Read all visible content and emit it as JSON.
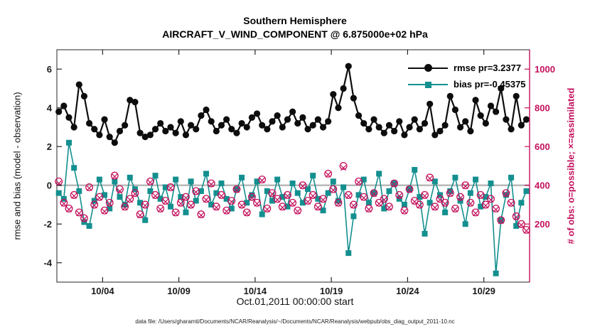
{
  "figure": {
    "title_line1": "Southern Hemisphere",
    "title_line2": "AIRCRAFT_V_WIND_COMPONENT @ 6.875000e+02 hPa",
    "xlabel": "Oct.01,2011 00:00:00 start",
    "ylabel_left": "rmse and bias (model - observation)",
    "ylabel_right": "# of obs: o=possible; ×=assimilated",
    "caption": "data file: /Users/gharamti/Documents/NCAR/Reanalysis/~/Documents/NCAR/Reanalysis/webpub/obs_diag_output_2011-10.nc",
    "colors": {
      "rmse": "#0d0d0d",
      "bias": "#148f8f",
      "obs": "#c4105c",
      "zero_line": "#b9b9b9",
      "axis": "#262626"
    }
  },
  "legend": [
    {
      "label": "rmse pr=3.2377",
      "series": "rmse"
    },
    {
      "label": "bias pr=-0.45375",
      "series": "bias"
    }
  ],
  "chart_data": {
    "type": "line",
    "title": "Southern Hemisphere — AIRCRAFT_V_WIND_COMPONENT @ 6.875000e+02 hPa",
    "xlabel": "Oct.01,2011 00:00:00 start",
    "rmse_pr": 3.2377,
    "bias_pr": -0.45375,
    "x_range": [
      1,
      32
    ],
    "x_start_day": 1.125,
    "x_step_days": 0.33333,
    "x_ticks": {
      "positions": [
        4,
        9,
        14,
        19,
        24,
        29
      ],
      "labels": [
        "10/04",
        "10/09",
        "10/14",
        "10/19",
        "10/24",
        "10/29"
      ]
    },
    "y_left": {
      "label": "rmse and bias (model - observation)",
      "ticks": [
        -4,
        -2,
        0,
        2,
        4,
        6
      ],
      "range": [
        -5,
        7
      ]
    },
    "y_right": {
      "label": "# of obs: o=possible; ×=assimilated",
      "ticks": [
        200,
        400,
        600,
        800,
        1000
      ],
      "range": [
        -100,
        1100
      ]
    },
    "zero_line": 0,
    "series": [
      {
        "name": "rmse",
        "axis": "left",
        "marker": "filled-circle",
        "values": [
          3.8,
          4.1,
          3.5,
          3.0,
          5.2,
          4.6,
          3.2,
          2.9,
          2.6,
          3.4,
          2.5,
          2.2,
          2.8,
          3.1,
          4.4,
          4.3,
          2.7,
          2.5,
          2.6,
          2.9,
          3.2,
          2.8,
          3.0,
          2.7,
          3.3,
          2.6,
          3.1,
          2.9,
          3.6,
          3.9,
          3.3,
          2.8,
          3.1,
          3.4,
          2.9,
          2.7,
          3.2,
          3.0,
          3.5,
          3.7,
          3.1,
          2.9,
          3.3,
          3.6,
          3.0,
          3.4,
          3.8,
          3.2,
          3.5,
          2.9,
          3.1,
          3.4,
          3.0,
          3.3,
          4.7,
          4.0,
          5.0,
          6.15,
          4.5,
          3.6,
          3.2,
          2.9,
          3.4,
          3.0,
          2.7,
          3.1,
          2.8,
          3.3,
          2.6,
          3.0,
          3.4,
          2.9,
          3.2,
          4.2,
          2.6,
          2.8,
          3.1,
          4.6,
          3.9,
          3.0,
          3.3,
          2.8,
          4.4,
          3.6,
          3.2,
          4.1,
          3.8,
          5.0,
          3.4,
          2.9,
          4.6,
          3.1,
          3.4
        ]
      },
      {
        "name": "bias",
        "axis": "left",
        "marker": "filled-square",
        "values": [
          -0.4,
          -0.7,
          2.2,
          0.9,
          -0.3,
          -1.9,
          -2.1,
          -0.8,
          0.3,
          -0.5,
          -1.2,
          0.2,
          -0.6,
          -1.0,
          0.4,
          -0.2,
          -0.9,
          -1.8,
          -0.3,
          0.5,
          -0.7,
          -0.1,
          -1.1,
          0.3,
          -0.6,
          -1.4,
          0.2,
          -0.8,
          -0.3,
          0.6,
          -1.0,
          -0.4,
          0.1,
          -0.7,
          -1.2,
          -0.2,
          0.4,
          -0.9,
          -0.5,
          0.2,
          -1.5,
          -0.3,
          -0.8,
          0.3,
          -0.6,
          -1.1,
          0.1,
          -0.4,
          -0.9,
          -0.2,
          0.5,
          -0.7,
          -1.3,
          -0.4,
          0.2,
          -0.8,
          -0.1,
          -3.5,
          -1.6,
          -0.5,
          0.3,
          -0.9,
          -0.4,
          0.6,
          -1.2,
          -0.3,
          0.1,
          -0.7,
          -1.0,
          -0.2,
          0.8,
          -0.6,
          -2.5,
          -0.9,
          0.2,
          -0.5,
          -1.4,
          -0.3,
          0.4,
          -0.8,
          -2.0,
          -0.4,
          0.3,
          -1.1,
          -0.6,
          0.1,
          -4.55,
          -1.8,
          -0.5,
          0.4,
          -2.1,
          -0.9,
          -0.3
        ]
      },
      {
        "name": "possible",
        "axis": "right",
        "marker": "o",
        "values": [
          420,
          310,
          280,
          350,
          260,
          230,
          390,
          300,
          340,
          270,
          310,
          450,
          380,
          290,
          330,
          360,
          250,
          300,
          420,
          350,
          280,
          320,
          390,
          260,
          310,
          340,
          300,
          370,
          250,
          330,
          410,
          290,
          350,
          270,
          320,
          380,
          300,
          260,
          340,
          310,
          430,
          280,
          360,
          330,
          290,
          350,
          310,
          270,
          400,
          320,
          350,
          290,
          330,
          460,
          380,
          310,
          500,
          350,
          300,
          420,
          340,
          280,
          360,
          310,
          330,
          290,
          410,
          350,
          270,
          380,
          320,
          300,
          350,
          440,
          290,
          330,
          310,
          360,
          280,
          340,
          400,
          310,
          260,
          350,
          300,
          330,
          280,
          220,
          360,
          310,
          240,
          200,
          170
        ]
      },
      {
        "name": "assimilated",
        "axis": "right",
        "marker": "x",
        "values": [
          410,
          305,
          275,
          345,
          255,
          225,
          385,
          295,
          335,
          265,
          305,
          445,
          370,
          285,
          325,
          355,
          245,
          295,
          415,
          345,
          275,
          315,
          385,
          255,
          305,
          335,
          295,
          365,
          245,
          325,
          405,
          285,
          345,
          265,
          315,
          375,
          295,
          255,
          335,
          305,
          425,
          275,
          355,
          325,
          285,
          345,
          305,
          265,
          395,
          315,
          345,
          285,
          325,
          455,
          375,
          305,
          490,
          345,
          295,
          415,
          335,
          275,
          355,
          305,
          325,
          285,
          405,
          345,
          265,
          375,
          315,
          295,
          345,
          435,
          285,
          325,
          305,
          355,
          275,
          335,
          395,
          305,
          255,
          345,
          295,
          325,
          275,
          215,
          355,
          305,
          235,
          195,
          165
        ]
      }
    ]
  }
}
